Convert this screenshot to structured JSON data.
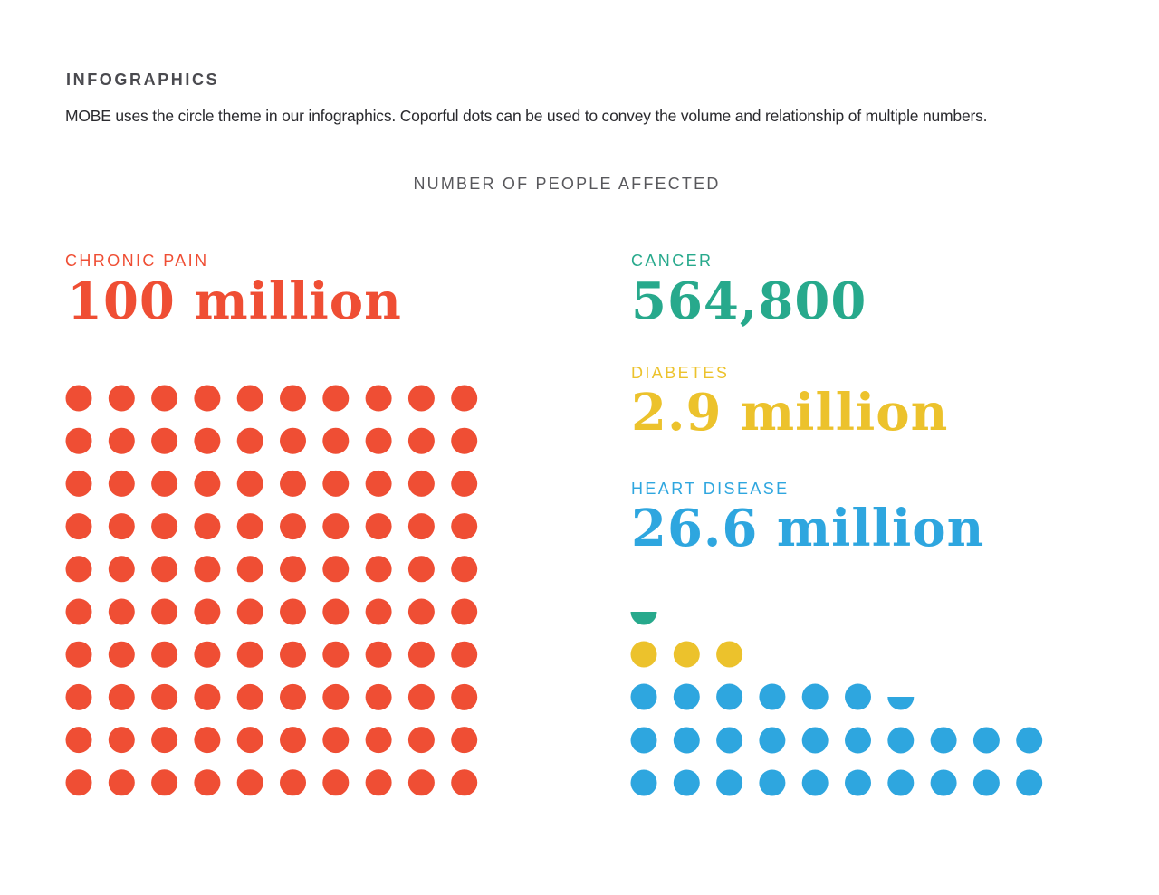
{
  "section": {
    "title": "INFOGRAPHICS",
    "description": "MOBE uses the circle theme in our infographics. Coporful dots can be used to convey the volume and relationship of multiple numbers."
  },
  "chart_data": {
    "type": "dot-matrix",
    "title": "NUMBER OF PEOPLE AFFECTED",
    "unit_per_dot": "1 million people",
    "series": [
      {
        "key": "chronic_pain",
        "name": "CHRONIC PAIN",
        "display_value": "100 million",
        "value_millions": 100,
        "color": "#ef4e34"
      },
      {
        "key": "cancer",
        "name": "CANCER",
        "display_value": "564,800",
        "value_millions": 0.5648,
        "color": "#27a98c"
      },
      {
        "key": "diabetes",
        "name": "DIABETES",
        "display_value": "2.9 million",
        "value_millions": 2.9,
        "color": "#ecc22c"
      },
      {
        "key": "heart_disease",
        "name": "HEART DISEASE",
        "display_value": "26.6 million",
        "value_millions": 26.6,
        "color": "#2ea6df"
      }
    ]
  }
}
